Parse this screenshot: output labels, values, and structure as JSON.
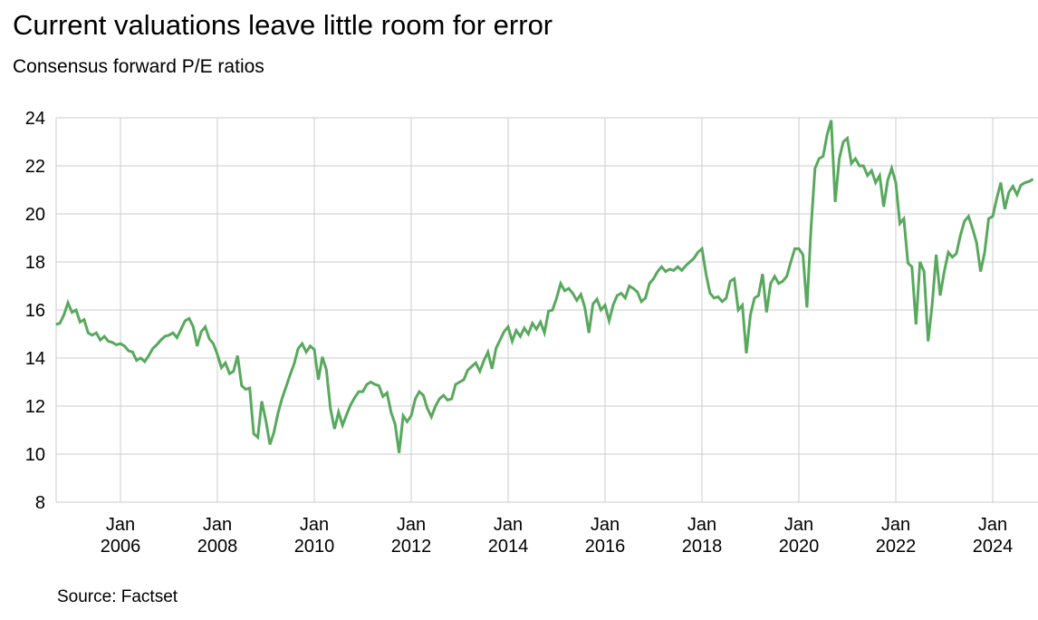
{
  "header": {
    "title": "Current valuations leave little room for error",
    "subtitle": "Consensus forward P/E ratios"
  },
  "footer": {
    "source": "Source: Factset"
  },
  "colors": {
    "line": "#58A85D",
    "grid": "#cccccc",
    "text": "#000000",
    "background": "#ffffff"
  },
  "chart_data": {
    "type": "line",
    "title": "Current valuations leave little room for error",
    "subtitle": "Consensus forward P/E ratios",
    "source": "Source: Factset",
    "xlabel": "",
    "ylabel": "",
    "grid": true,
    "legend_position": "none",
    "ylim": [
      8,
      24
    ],
    "y_ticks": [
      24,
      22,
      20,
      18,
      16,
      14,
      12,
      10,
      8
    ],
    "x_ticks": [
      {
        "top": "Jan",
        "bottom": "2006"
      },
      {
        "top": "Jan",
        "bottom": "2008"
      },
      {
        "top": "Jan",
        "bottom": "2010"
      },
      {
        "top": "Jan",
        "bottom": "2012"
      },
      {
        "top": "Jan",
        "bottom": "2014"
      },
      {
        "top": "Jan",
        "bottom": "2016"
      },
      {
        "top": "Jan",
        "bottom": "2018"
      },
      {
        "top": "Jan",
        "bottom": "2020"
      },
      {
        "top": "Jan",
        "bottom": "2022"
      },
      {
        "top": "Jan",
        "bottom": "2024"
      }
    ],
    "series": [
      {
        "name": "Consensus forward P/E ratio",
        "frequency": "monthly",
        "start": "2004-09",
        "end": "2024-11",
        "values": [
          15.4,
          15.45,
          15.8,
          16.3,
          15.9,
          16.0,
          15.5,
          15.6,
          15.05,
          14.95,
          15.05,
          14.75,
          14.9,
          14.7,
          14.65,
          14.55,
          14.6,
          14.5,
          14.3,
          14.25,
          13.9,
          14.0,
          13.85,
          14.1,
          14.4,
          14.55,
          14.75,
          14.9,
          14.95,
          15.05,
          14.85,
          15.2,
          15.55,
          15.65,
          15.3,
          14.5,
          15.1,
          15.3,
          14.8,
          14.6,
          14.15,
          13.6,
          13.8,
          13.35,
          13.45,
          14.1,
          12.85,
          12.7,
          12.75,
          10.85,
          10.7,
          12.2,
          11.4,
          10.4,
          10.9,
          11.7,
          12.3,
          12.8,
          13.3,
          13.75,
          14.4,
          14.6,
          14.25,
          14.5,
          14.35,
          13.1,
          14.05,
          13.5,
          11.9,
          11.05,
          11.75,
          11.2,
          11.65,
          12.05,
          12.35,
          12.6,
          12.6,
          12.9,
          13.0,
          12.9,
          12.85,
          12.4,
          12.55,
          11.75,
          11.25,
          10.05,
          11.6,
          11.35,
          11.6,
          12.3,
          12.6,
          12.45,
          11.9,
          11.55,
          12.0,
          12.3,
          12.45,
          12.25,
          12.3,
          12.9,
          13.0,
          13.1,
          13.5,
          13.65,
          13.8,
          13.45,
          13.9,
          14.25,
          13.55,
          14.4,
          14.75,
          15.1,
          15.3,
          14.7,
          15.15,
          14.9,
          15.25,
          15.0,
          15.45,
          15.2,
          15.5,
          15.05,
          15.95,
          16.0,
          16.5,
          17.1,
          16.8,
          16.9,
          16.7,
          16.4,
          16.65,
          16.1,
          15.05,
          16.25,
          16.45,
          16.0,
          16.2,
          15.55,
          16.2,
          16.6,
          16.7,
          16.5,
          17.0,
          16.9,
          16.75,
          16.35,
          16.5,
          17.1,
          17.3,
          17.6,
          17.8,
          17.6,
          17.7,
          17.65,
          17.8,
          17.65,
          17.85,
          18.0,
          18.15,
          18.4,
          18.55,
          17.5,
          16.7,
          16.5,
          16.55,
          16.35,
          16.5,
          17.2,
          17.3,
          16.0,
          16.2,
          14.2,
          15.8,
          16.5,
          16.6,
          17.5,
          15.9,
          17.1,
          17.4,
          17.1,
          17.2,
          17.4,
          18.0,
          18.55,
          18.55,
          18.3,
          16.1,
          19.4,
          21.9,
          22.3,
          22.4,
          23.3,
          23.9,
          20.5,
          22.3,
          23.0,
          23.15,
          22.1,
          22.3,
          22.0,
          22.0,
          21.6,
          21.8,
          21.3,
          21.6,
          20.3,
          21.4,
          21.9,
          21.3,
          19.6,
          19.8,
          17.95,
          17.8,
          15.4,
          18.0,
          17.6,
          14.7,
          16.2,
          18.3,
          16.6,
          17.6,
          18.4,
          18.2,
          18.35,
          19.1,
          19.7,
          19.9,
          19.4,
          18.8,
          17.6,
          18.4,
          19.8,
          19.9,
          20.65,
          21.3,
          20.2,
          20.9,
          21.15,
          20.8,
          21.2,
          21.3,
          21.35,
          21.45
        ]
      }
    ]
  }
}
